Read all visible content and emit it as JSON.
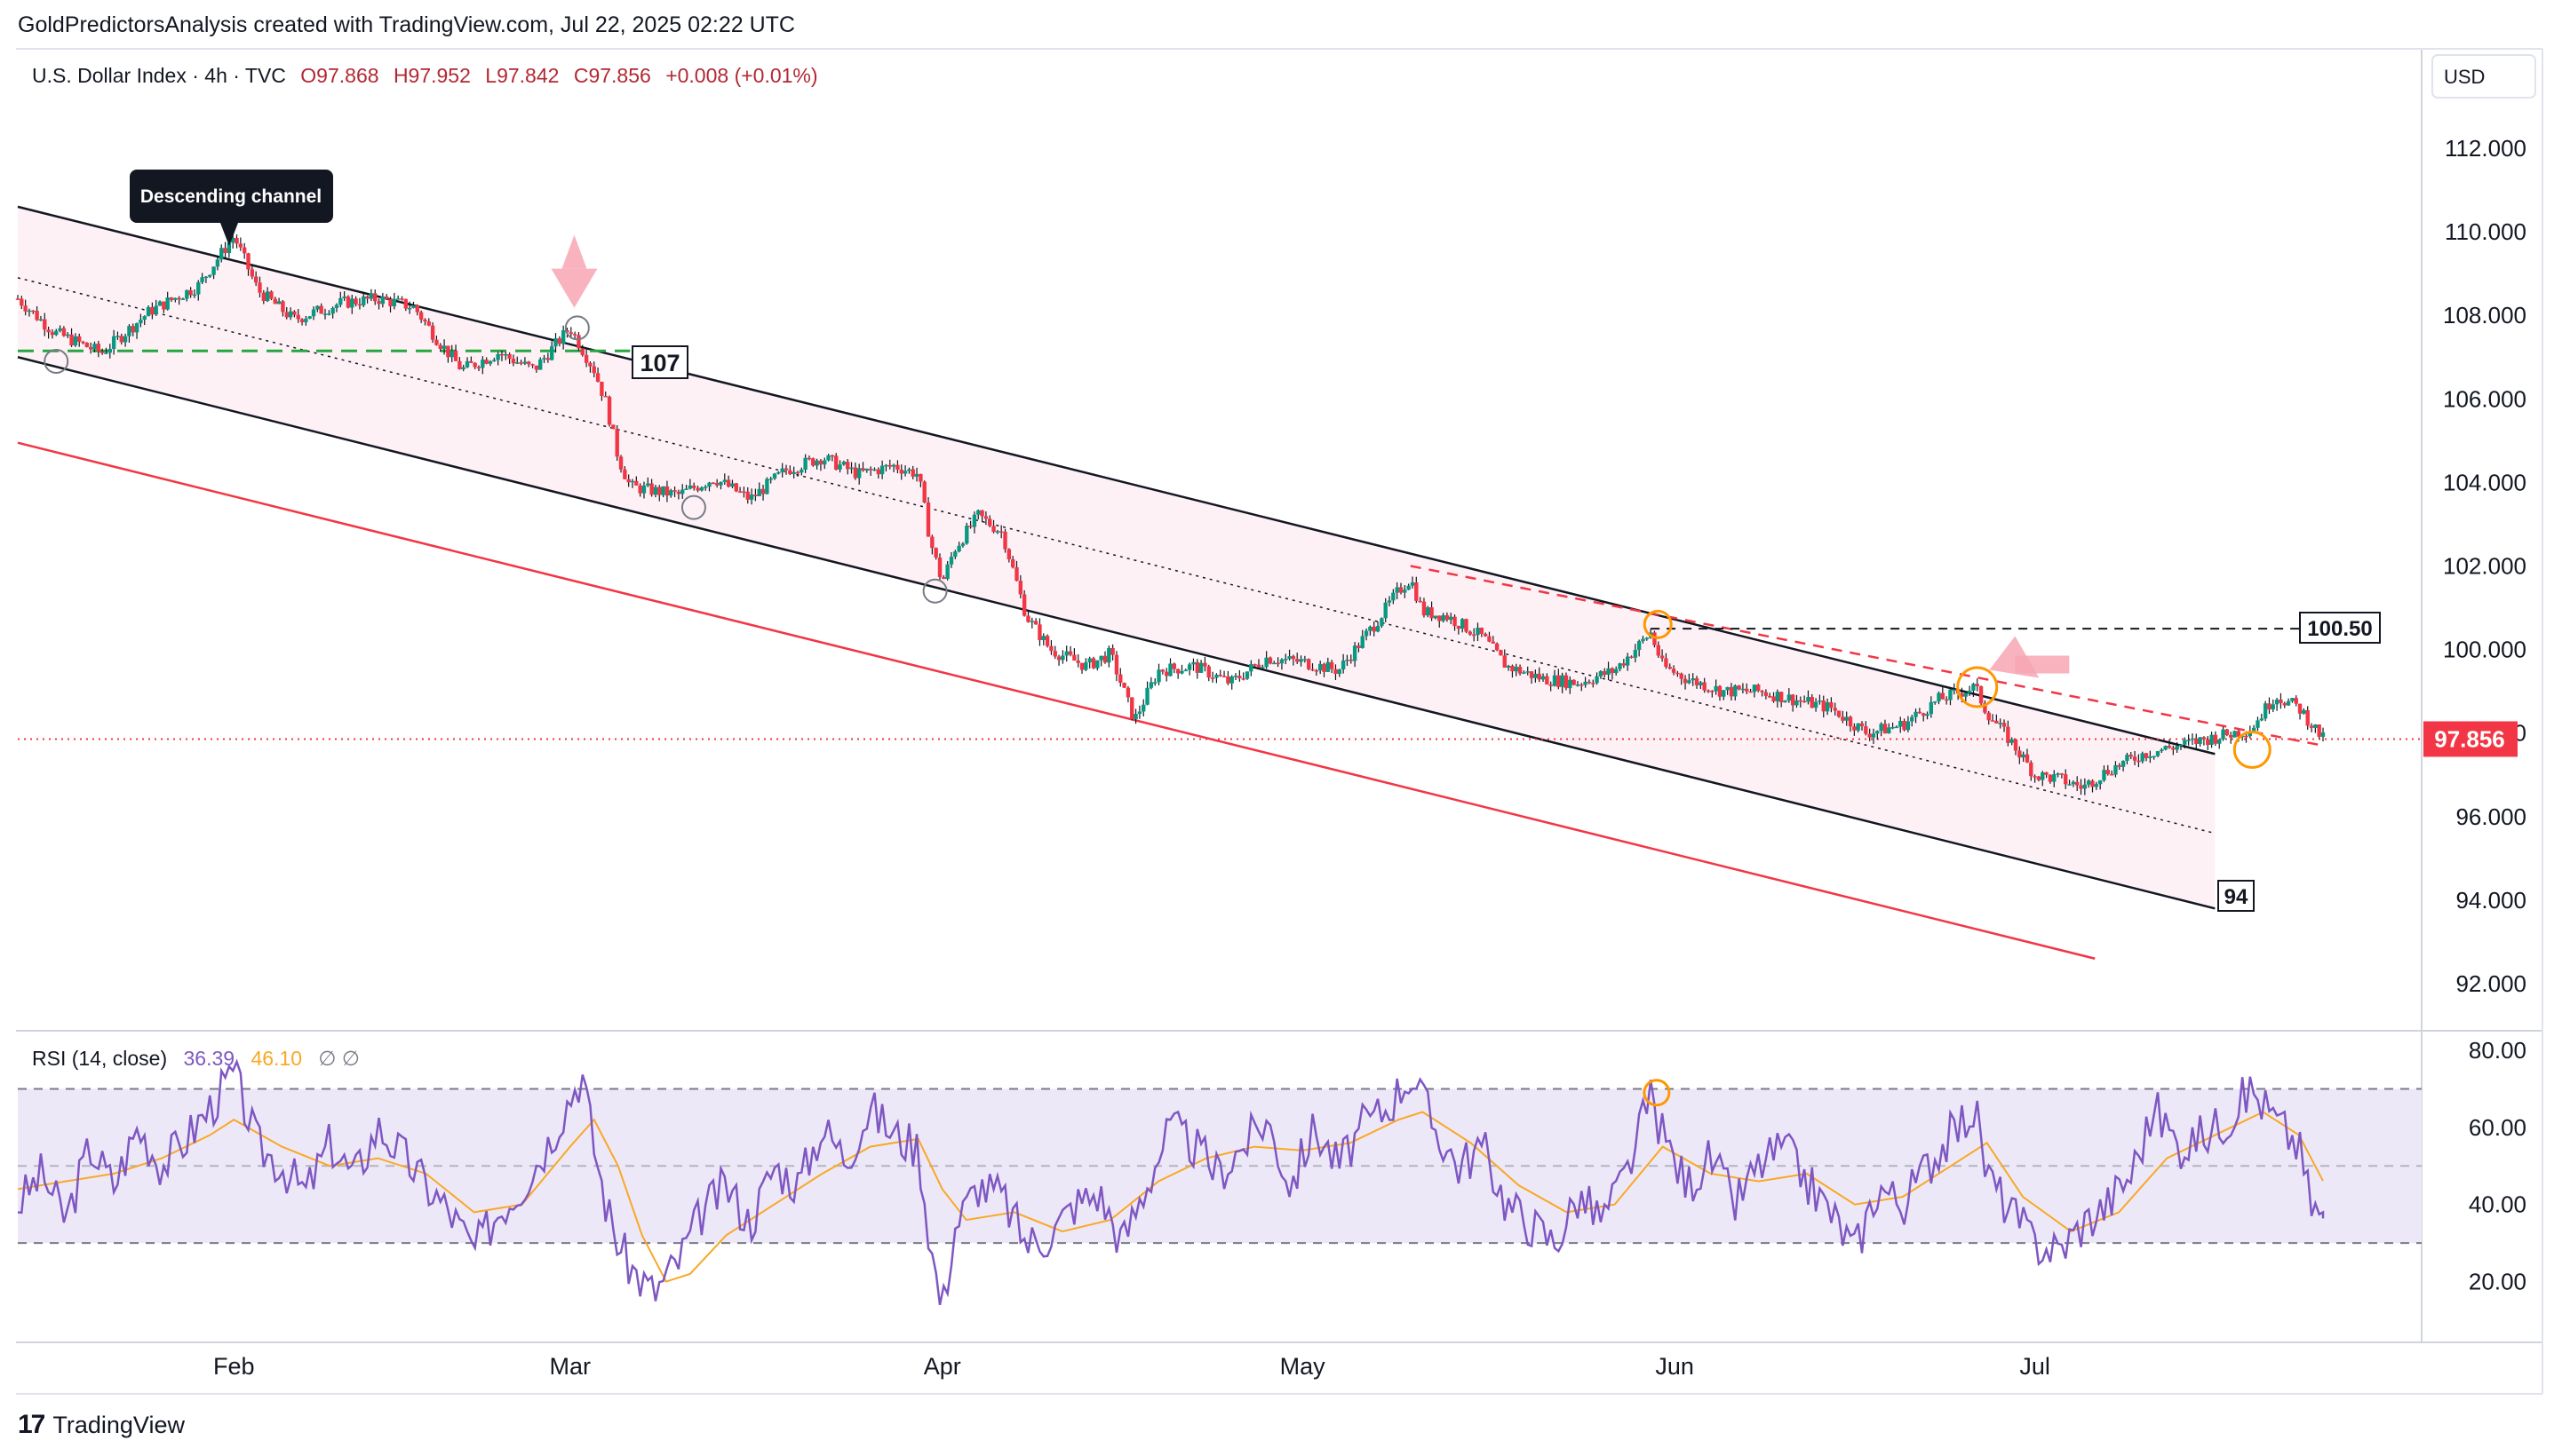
{
  "credit": "GoldPredictorsAnalysis created with TradingView.com, Jul 22, 2025 02:22 UTC",
  "header": {
    "symbol": "U.S. Dollar Index · 4h · TVC",
    "open": "O97.868",
    "high": "H97.952",
    "low": "L97.842",
    "close": "C97.856",
    "change": "+0.008 (+0.01%)"
  },
  "currency_button": "USD",
  "footer_brand": "TradingView",
  "chart_data": [
    {
      "type": "candlestick",
      "title": "U.S. Dollar Index · 4h · TVC",
      "ylim": [
        91,
        114
      ],
      "y_ticks": [
        "112.000",
        "110.000",
        "108.000",
        "106.000",
        "104.000",
        "102.000",
        "100.000",
        "98.000",
        "96.000",
        "94.000",
        "92.000"
      ],
      "x_ticks": [
        "Feb",
        "Mar",
        "Apr",
        "May",
        "Jun",
        "Jul"
      ],
      "x_tick_days": [
        31,
        59,
        90,
        120,
        151,
        181
      ],
      "x_range_days": [
        13,
        205
      ],
      "last_price": "97.856",
      "last_price_value": 97.856,
      "colors": {
        "up": "#089981",
        "down": "#f23645",
        "wick": "#131722",
        "price_label": "#f23645",
        "channel_fill": "#fdf1f5",
        "support_line": "#f23645",
        "level_107": "#26a641"
      },
      "close_path": [
        [
          13,
          108.4
        ],
        [
          16,
          107.6
        ],
        [
          20,
          107.1
        ],
        [
          24,
          108.1
        ],
        [
          28,
          108.7
        ],
        [
          31,
          109.9
        ],
        [
          33,
          108.6
        ],
        [
          36,
          107.9
        ],
        [
          40,
          108.3
        ],
        [
          43,
          108.4
        ],
        [
          46,
          108.2
        ],
        [
          48,
          107.4
        ],
        [
          50,
          106.7
        ],
        [
          53,
          107.1
        ],
        [
          56,
          106.7
        ],
        [
          59,
          107.7
        ],
        [
          61,
          106.7
        ],
        [
          62,
          105.9
        ],
        [
          63,
          104.6
        ],
        [
          64,
          103.9
        ],
        [
          66,
          103.8
        ],
        [
          68,
          103.7
        ],
        [
          71,
          104.1
        ],
        [
          74,
          103.6
        ],
        [
          77,
          104.3
        ],
        [
          80,
          104.6
        ],
        [
          83,
          104.2
        ],
        [
          86,
          104.4
        ],
        [
          88,
          104.2
        ],
        [
          89,
          102.6
        ],
        [
          90,
          101.6
        ],
        [
          91,
          102.4
        ],
        [
          93,
          103.2
        ],
        [
          95,
          102.8
        ],
        [
          97,
          100.8
        ],
        [
          99,
          100.0
        ],
        [
          102,
          99.6
        ],
        [
          104,
          99.9
        ],
        [
          106,
          98.3
        ],
        [
          108,
          99.5
        ],
        [
          111,
          99.6
        ],
        [
          114,
          99.2
        ],
        [
          117,
          99.8
        ],
        [
          120,
          99.7
        ],
        [
          123,
          99.5
        ],
        [
          126,
          100.6
        ],
        [
          128,
          101.4
        ],
        [
          129,
          101.7
        ],
        [
          130,
          100.9
        ],
        [
          132,
          100.8
        ],
        [
          135,
          100.3
        ],
        [
          137,
          99.6
        ],
        [
          140,
          99.3
        ],
        [
          143,
          99.2
        ],
        [
          146,
          99.5
        ],
        [
          149,
          100.4
        ],
        [
          150,
          99.6
        ],
        [
          152,
          99.3
        ],
        [
          155,
          99.0
        ],
        [
          158,
          99.0
        ],
        [
          161,
          98.8
        ],
        [
          164,
          98.6
        ],
        [
          167,
          98.0
        ],
        [
          170,
          98.2
        ],
        [
          173,
          98.8
        ],
        [
          176,
          99.1
        ],
        [
          177,
          98.5
        ],
        [
          179,
          97.8
        ],
        [
          181,
          97.0
        ],
        [
          183,
          96.9
        ],
        [
          185,
          96.7
        ],
        [
          187,
          97.1
        ],
        [
          190,
          97.5
        ],
        [
          193,
          97.7
        ],
        [
          196,
          97.9
        ],
        [
          199,
          98.1
        ],
        [
          201,
          98.9
        ],
        [
          203,
          98.6
        ],
        [
          205,
          97.86
        ]
      ],
      "overlays": [
        {
          "kind": "channel-upper",
          "from": [
            13,
            110.6
          ],
          "to": [
            196,
            97.5
          ]
        },
        {
          "kind": "channel-middle",
          "from": [
            13,
            108.9
          ],
          "to": [
            196,
            95.6
          ]
        },
        {
          "kind": "channel-lower",
          "from": [
            13,
            107.0
          ],
          "to": [
            196,
            93.8
          ]
        },
        {
          "kind": "support-line",
          "from": [
            13,
            104.95
          ],
          "to": [
            186,
            92.6
          ]
        },
        {
          "kind": "resistance-dashed",
          "from": [
            129,
            102.0
          ],
          "to": [
            205,
            97.7
          ]
        },
        {
          "kind": "level",
          "value": 107.15,
          "from": 13,
          "to": 64,
          "label": "107"
        },
        {
          "kind": "level",
          "value": 100.5,
          "from": 149,
          "to": 205,
          "label": "100.50"
        },
        {
          "kind": "level",
          "value": 97.856,
          "from": 13,
          "to": 210,
          "label": ""
        }
      ],
      "annotations": {
        "callout": "Descending channel",
        "label_94": "94"
      }
    },
    {
      "type": "line",
      "title": "RSI (14, close)",
      "ylim": [
        7,
        83
      ],
      "y_ticks": [
        "80.00",
        "60.00",
        "40.00",
        "20.00"
      ],
      "band": [
        30,
        70
      ],
      "midline": 50,
      "readout_rsi": "36.39",
      "readout_ma": "46.10",
      "readout_extra": "∅  ∅",
      "series": [
        {
          "color": "#7e57c2",
          "points": [
            [
              13,
              40
            ],
            [
              15,
              48
            ],
            [
              17,
              36
            ],
            [
              19,
              55
            ],
            [
              21,
              45
            ],
            [
              23,
              60
            ],
            [
              25,
              50
            ],
            [
              27,
              57
            ],
            [
              29,
              65
            ],
            [
              31,
              74
            ],
            [
              33,
              55
            ],
            [
              35,
              50
            ],
            [
              37,
              43
            ],
            [
              39,
              56
            ],
            [
              41,
              47
            ],
            [
              43,
              60
            ],
            [
              45,
              53
            ],
            [
              47,
              45
            ],
            [
              49,
              38
            ],
            [
              51,
              28
            ],
            [
              53,
              38
            ],
            [
              55,
              45
            ],
            [
              57,
              55
            ],
            [
              59,
              68
            ],
            [
              60,
              74
            ],
            [
              61,
              55
            ],
            [
              62,
              40
            ],
            [
              63,
              30
            ],
            [
              64,
              24
            ],
            [
              65,
              20
            ],
            [
              66,
              17
            ],
            [
              68,
              25
            ],
            [
              70,
              38
            ],
            [
              72,
              45
            ],
            [
              74,
              35
            ],
            [
              76,
              50
            ],
            [
              78,
              45
            ],
            [
              80,
              60
            ],
            [
              82,
              52
            ],
            [
              84,
              65
            ],
            [
              86,
              58
            ],
            [
              88,
              55
            ],
            [
              89,
              30
            ],
            [
              90,
              12
            ],
            [
              91,
              34
            ],
            [
              93,
              45
            ],
            [
              95,
              42
            ],
            [
              97,
              30
            ],
            [
              99,
              32
            ],
            [
              101,
              40
            ],
            [
              103,
              43
            ],
            [
              105,
              30
            ],
            [
              107,
              45
            ],
            [
              109,
              60
            ],
            [
              111,
              55
            ],
            [
              113,
              48
            ],
            [
              115,
              55
            ],
            [
              117,
              62
            ],
            [
              119,
              45
            ],
            [
              121,
              60
            ],
            [
              123,
              50
            ],
            [
              125,
              60
            ],
            [
              127,
              65
            ],
            [
              129,
              74
            ],
            [
              131,
              60
            ],
            [
              133,
              50
            ],
            [
              135,
              55
            ],
            [
              137,
              40
            ],
            [
              139,
              35
            ],
            [
              141,
              30
            ],
            [
              143,
              42
            ],
            [
              145,
              36
            ],
            [
              147,
              48
            ],
            [
              149,
              68
            ],
            [
              150,
              58
            ],
            [
              152,
              45
            ],
            [
              154,
              52
            ],
            [
              156,
              40
            ],
            [
              158,
              50
            ],
            [
              160,
              55
            ],
            [
              162,
              46
            ],
            [
              164,
              38
            ],
            [
              166,
              28
            ],
            [
              168,
              45
            ],
            [
              170,
              40
            ],
            [
              172,
              50
            ],
            [
              174,
              58
            ],
            [
              176,
              65
            ],
            [
              177,
              48
            ],
            [
              179,
              38
            ],
            [
              181,
              30
            ],
            [
              183,
              28
            ],
            [
              185,
              35
            ],
            [
              187,
              40
            ],
            [
              189,
              48
            ],
            [
              191,
              65
            ],
            [
              193,
              55
            ],
            [
              195,
              58
            ],
            [
              197,
              62
            ],
            [
              199,
              70
            ],
            [
              201,
              62
            ],
            [
              203,
              55
            ],
            [
              204,
              40
            ],
            [
              205,
              36.39
            ]
          ]
        },
        {
          "color": "#f9a825",
          "points": [
            [
              13,
              44
            ],
            [
              17,
              46
            ],
            [
              21,
              48
            ],
            [
              25,
              52
            ],
            [
              29,
              58
            ],
            [
              31,
              62
            ],
            [
              35,
              55
            ],
            [
              39,
              50
            ],
            [
              43,
              52
            ],
            [
              47,
              48
            ],
            [
              51,
              38
            ],
            [
              55,
              40
            ],
            [
              59,
              55
            ],
            [
              61,
              62
            ],
            [
              63,
              50
            ],
            [
              65,
              32
            ],
            [
              67,
              20
            ],
            [
              69,
              22
            ],
            [
              72,
              32
            ],
            [
              76,
              40
            ],
            [
              80,
              48
            ],
            [
              84,
              55
            ],
            [
              88,
              57
            ],
            [
              90,
              44
            ],
            [
              92,
              36
            ],
            [
              96,
              38
            ],
            [
              100,
              33
            ],
            [
              104,
              36
            ],
            [
              108,
              46
            ],
            [
              112,
              52
            ],
            [
              116,
              55
            ],
            [
              120,
              54
            ],
            [
              124,
              56
            ],
            [
              128,
              62
            ],
            [
              130,
              64
            ],
            [
              134,
              56
            ],
            [
              138,
              45
            ],
            [
              142,
              38
            ],
            [
              146,
              40
            ],
            [
              150,
              55
            ],
            [
              154,
              48
            ],
            [
              158,
              46
            ],
            [
              162,
              48
            ],
            [
              166,
              40
            ],
            [
              170,
              42
            ],
            [
              174,
              50
            ],
            [
              177,
              56
            ],
            [
              180,
              42
            ],
            [
              184,
              33
            ],
            [
              188,
              38
            ],
            [
              192,
              52
            ],
            [
              196,
              58
            ],
            [
              200,
              64
            ],
            [
              203,
              58
            ],
            [
              205,
              46.1
            ]
          ]
        }
      ]
    }
  ]
}
